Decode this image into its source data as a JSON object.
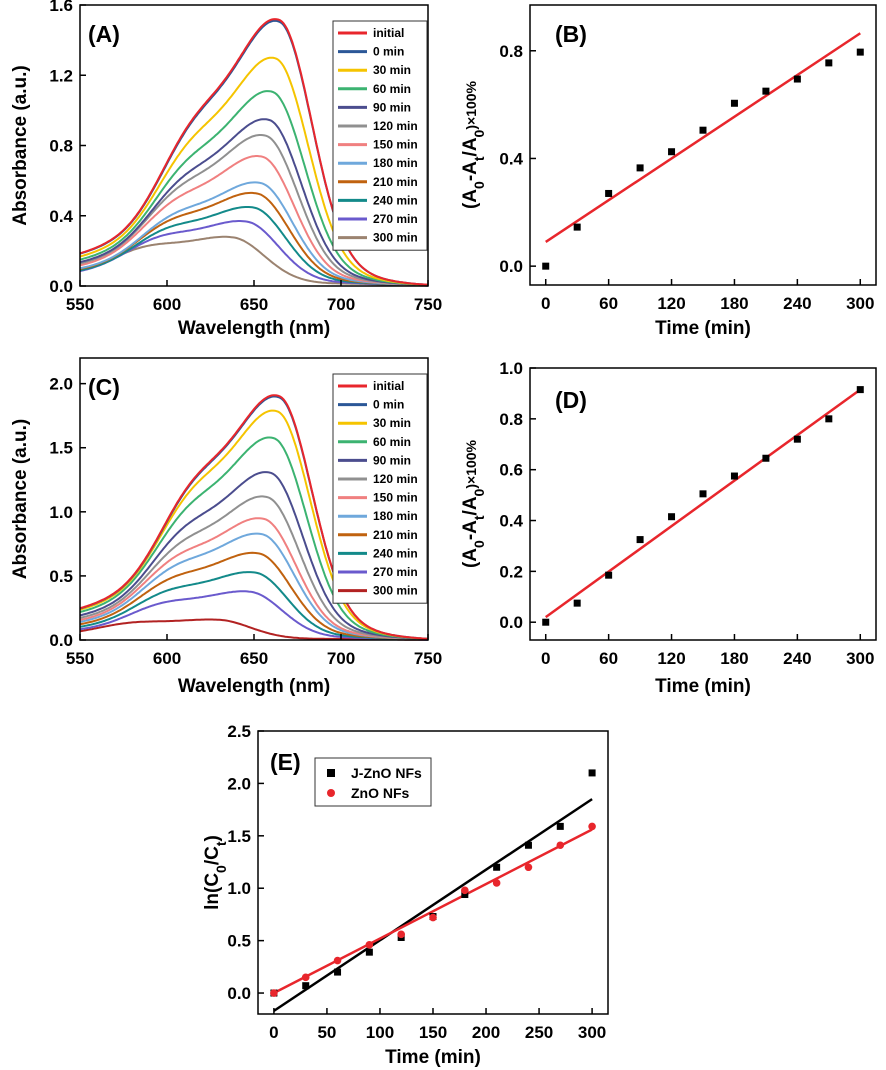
{
  "chart_data": [
    {
      "id": "A",
      "type": "line",
      "panel_label": "(A)",
      "xlabel": "Wavelength (nm)",
      "ylabel": "Absorbance (a.u.)",
      "xlim": [
        550,
        750
      ],
      "ylim": [
        0,
        1.6
      ],
      "xticks": [
        550,
        600,
        650,
        700,
        750
      ],
      "xtick_labels": [
        "550",
        "600",
        "650",
        "700",
        "750"
      ],
      "yticks": [
        0,
        0.4,
        0.8,
        1.2,
        1.6
      ],
      "ytick_labels": [
        "0.0",
        "0.4",
        "0.8",
        "1.2",
        "1.6"
      ],
      "series": [
        {
          "name": "initial",
          "color": "#e8262c",
          "peak": 1.52,
          "peak_x": 665,
          "shoulder": 0.87
        },
        {
          "name": "0 min",
          "color": "#2b5797",
          "peak": 1.51,
          "peak_x": 665,
          "shoulder": 0.86
        },
        {
          "name": "30 min",
          "color": "#f5c400",
          "peak": 1.3,
          "peak_x": 663,
          "shoulder": 0.76
        },
        {
          "name": "60 min",
          "color": "#3cb371",
          "peak": 1.11,
          "peak_x": 661,
          "shoulder": 0.66
        },
        {
          "name": "90 min",
          "color": "#4b4d8e",
          "peak": 0.95,
          "peak_x": 659,
          "shoulder": 0.58
        },
        {
          "name": "120 min",
          "color": "#909090",
          "peak": 0.86,
          "peak_x": 657,
          "shoulder": 0.53
        },
        {
          "name": "150 min",
          "color": "#f08080",
          "peak": 0.74,
          "peak_x": 655,
          "shoulder": 0.47
        },
        {
          "name": "180 min",
          "color": "#6fa8dc",
          "peak": 0.59,
          "peak_x": 654,
          "shoulder": 0.4
        },
        {
          "name": "210 min",
          "color": "#c0620f",
          "peak": 0.53,
          "peak_x": 652,
          "shoulder": 0.37
        },
        {
          "name": "240 min",
          "color": "#138a8a",
          "peak": 0.45,
          "peak_x": 650,
          "shoulder": 0.33
        },
        {
          "name": "270 min",
          "color": "#6a5acd",
          "peak": 0.37,
          "peak_x": 646,
          "shoulder": 0.29
        },
        {
          "name": "300 min",
          "color": "#9b8370",
          "peak": 0.28,
          "peak_x": 638,
          "shoulder": 0.24
        }
      ]
    },
    {
      "id": "B",
      "type": "scatter",
      "panel_label": "(B)",
      "xlabel": "Time (min)",
      "ylabel": "(A0-At/A0)×100%",
      "xlim": [
        -15,
        315
      ],
      "ylim": [
        -0.07,
        0.97
      ],
      "xticks": [
        0,
        60,
        120,
        180,
        240,
        300
      ],
      "xtick_labels": [
        "0",
        "60",
        "120",
        "180",
        "240",
        "300"
      ],
      "yticks": [
        0,
        0.4,
        0.8
      ],
      "ytick_labels": [
        "0.0",
        "0.4",
        "0.8"
      ],
      "x": [
        0,
        30,
        60,
        90,
        120,
        150,
        180,
        210,
        240,
        270,
        300
      ],
      "y": [
        0.0,
        0.145,
        0.27,
        0.365,
        0.425,
        0.505,
        0.605,
        0.65,
        0.695,
        0.755,
        0.795
      ],
      "fit": {
        "x": [
          0,
          300
        ],
        "y": [
          0.09,
          0.865
        ],
        "color": "#e8262c"
      }
    },
    {
      "id": "C",
      "type": "line",
      "panel_label": "(C)",
      "xlabel": "Wavelength (nm)",
      "ylabel": "Absorbance (a.u.)",
      "xlim": [
        550,
        750
      ],
      "ylim": [
        0,
        2.2
      ],
      "xticks": [
        550,
        600,
        650,
        700,
        750
      ],
      "xtick_labels": [
        "550",
        "600",
        "650",
        "700",
        "750"
      ],
      "yticks": [
        0,
        0.5,
        1.0,
        1.5,
        2.0
      ],
      "ytick_labels": [
        "0.0",
        "0.5",
        "1.0",
        "1.5",
        "2.0"
      ],
      "series": [
        {
          "name": "initial",
          "color": "#e8262c",
          "peak": 1.91,
          "peak_x": 665,
          "shoulder": 1.17
        },
        {
          "name": "0 min",
          "color": "#2b5797",
          "peak": 1.9,
          "peak_x": 665,
          "shoulder": 1.16
        },
        {
          "name": "30 min",
          "color": "#f5c400",
          "peak": 1.79,
          "peak_x": 664,
          "shoulder": 1.1
        },
        {
          "name": "60 min",
          "color": "#3cb371",
          "peak": 1.58,
          "peak_x": 662,
          "shoulder": 0.98
        },
        {
          "name": "90 min",
          "color": "#4b4d8e",
          "peak": 1.31,
          "peak_x": 660,
          "shoulder": 0.84
        },
        {
          "name": "120 min",
          "color": "#909090",
          "peak": 1.12,
          "peak_x": 658,
          "shoulder": 0.73
        },
        {
          "name": "150 min",
          "color": "#f08080",
          "peak": 0.95,
          "peak_x": 656,
          "shoulder": 0.64
        },
        {
          "name": "180 min",
          "color": "#6fa8dc",
          "peak": 0.83,
          "peak_x": 655,
          "shoulder": 0.57
        },
        {
          "name": "210 min",
          "color": "#c0620f",
          "peak": 0.68,
          "peak_x": 653,
          "shoulder": 0.48
        },
        {
          "name": "240 min",
          "color": "#138a8a",
          "peak": 0.53,
          "peak_x": 651,
          "shoulder": 0.39
        },
        {
          "name": "270 min",
          "color": "#6a5acd",
          "peak": 0.38,
          "peak_x": 648,
          "shoulder": 0.3
        },
        {
          "name": "300 min",
          "color": "#b22222",
          "peak": 0.16,
          "peak_x": 630,
          "shoulder": 0.15
        }
      ]
    },
    {
      "id": "D",
      "type": "scatter",
      "panel_label": "(D)",
      "xlabel": "Time (min)",
      "ylabel": "(A0-At/A0)×100%",
      "xlim": [
        -15,
        315
      ],
      "ylim": [
        -0.07,
        1.0
      ],
      "xticks": [
        0,
        60,
        120,
        180,
        240,
        300
      ],
      "xtick_labels": [
        "0",
        "60",
        "120",
        "180",
        "240",
        "300"
      ],
      "yticks": [
        0,
        0.2,
        0.4,
        0.6,
        0.8,
        1.0
      ],
      "ytick_labels": [
        "0.0",
        "0.2",
        "0.4",
        "0.6",
        "0.8",
        "1.0"
      ],
      "x": [
        0,
        30,
        60,
        90,
        120,
        150,
        180,
        210,
        240,
        270,
        300
      ],
      "y": [
        0.0,
        0.075,
        0.185,
        0.325,
        0.415,
        0.505,
        0.575,
        0.645,
        0.72,
        0.8,
        0.915
      ],
      "fit": {
        "x": [
          0,
          300
        ],
        "y": [
          0.02,
          0.915
        ],
        "color": "#e8262c"
      }
    },
    {
      "id": "E",
      "type": "scatter",
      "panel_label": "(E)",
      "xlabel": "Time (min)",
      "ylabel": "ln(C0/Ct)",
      "xlim": [
        -15,
        315
      ],
      "ylim": [
        -0.2,
        2.5
      ],
      "xticks": [
        0,
        50,
        100,
        150,
        200,
        250,
        300
      ],
      "xtick_labels": [
        "0",
        "50",
        "100",
        "150",
        "200",
        "250",
        "300"
      ],
      "yticks": [
        0,
        0.5,
        1.0,
        1.5,
        2.0,
        2.5
      ],
      "ytick_labels": [
        "0.0",
        "0.5",
        "1.0",
        "1.5",
        "2.0",
        "2.5"
      ],
      "series": [
        {
          "name": "J-ZnO NFs",
          "color": "#000000",
          "marker": "square",
          "x": [
            0,
            30,
            60,
            90,
            120,
            150,
            180,
            210,
            240,
            270,
            300
          ],
          "y": [
            0.0,
            0.07,
            0.2,
            0.39,
            0.53,
            0.73,
            0.94,
            1.2,
            1.41,
            1.59,
            2.1
          ],
          "fit": {
            "x": [
              0,
              300
            ],
            "y": [
              -0.17,
              1.85
            ]
          }
        },
        {
          "name": "ZnO NFs",
          "color": "#e8262c",
          "marker": "circle",
          "x": [
            0,
            30,
            60,
            90,
            120,
            150,
            180,
            210,
            240,
            270,
            300
          ],
          "y": [
            0.0,
            0.15,
            0.31,
            0.46,
            0.56,
            0.72,
            0.98,
            1.05,
            1.2,
            1.41,
            1.59
          ],
          "fit": {
            "x": [
              0,
              300
            ],
            "y": [
              0.0,
              1.56
            ]
          }
        }
      ]
    }
  ]
}
